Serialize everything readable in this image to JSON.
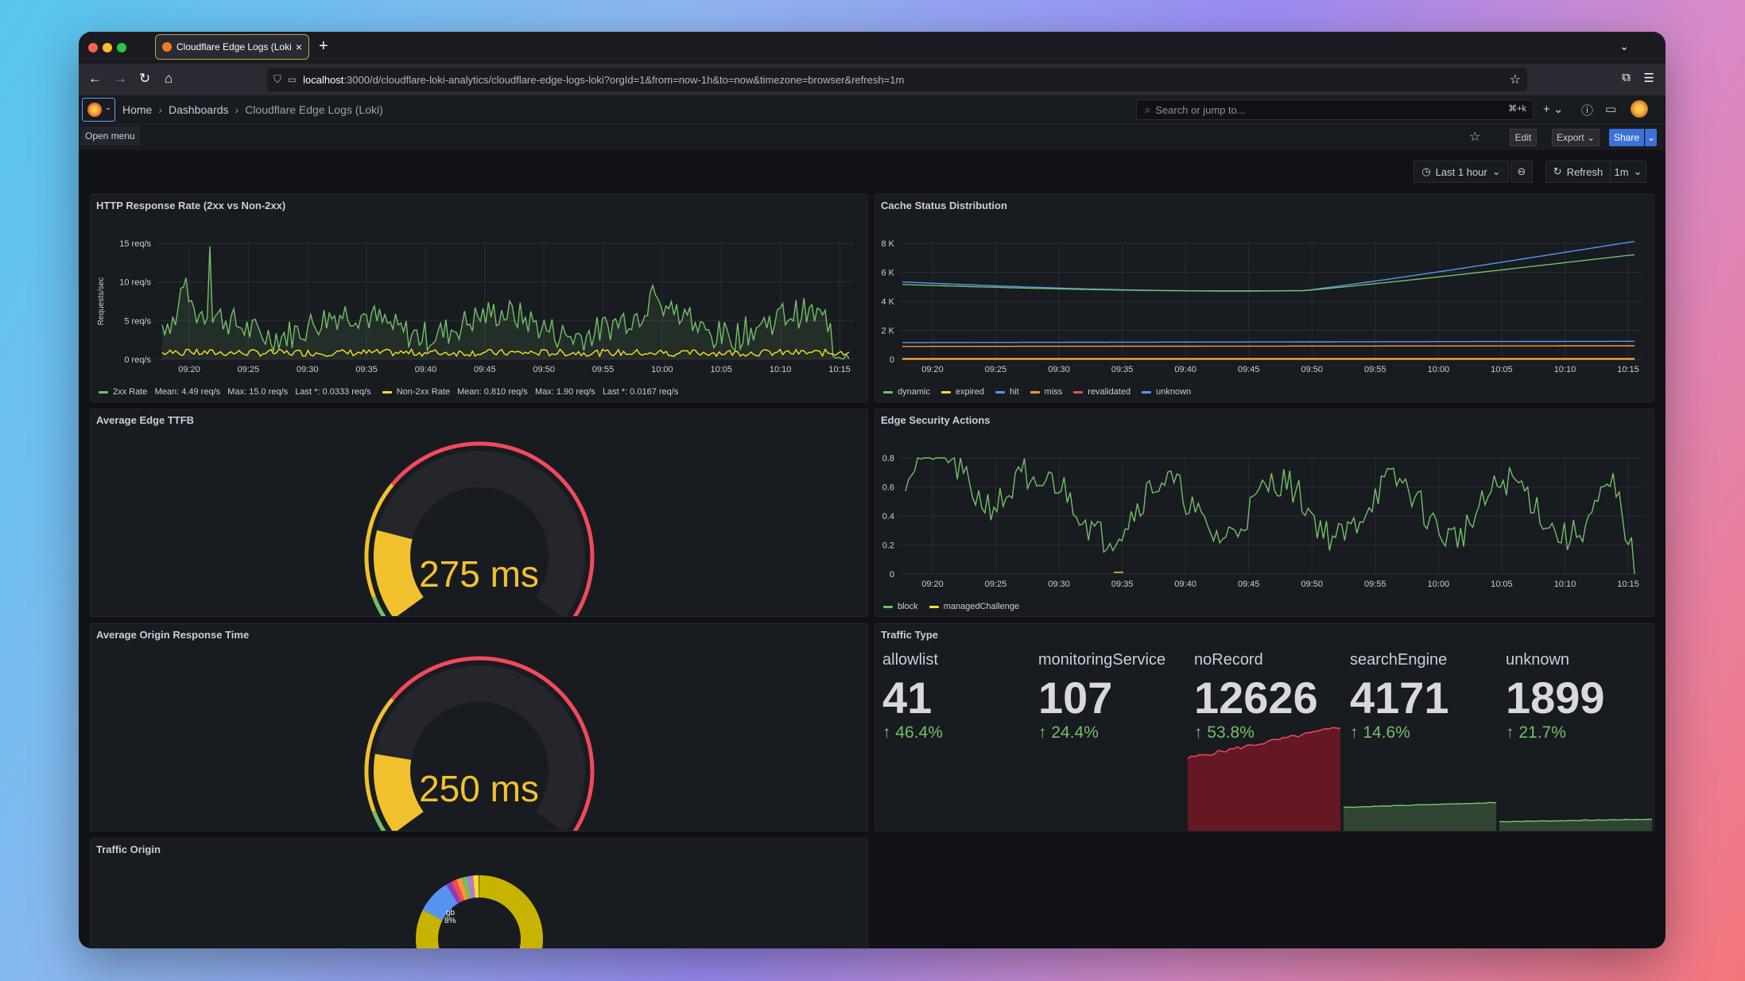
{
  "browser": {
    "tab_title": "Cloudflare Edge Logs (Loki) - D",
    "url_host": "localhost",
    "url_rest": ":3000/d/cloudflare-loki-analytics/cloudflare-edge-logs-loki?orgId=1&from=now-1h&to=now&timezone=browser&refresh=1m"
  },
  "header": {
    "breadcrumbs": [
      "Home",
      "Dashboards",
      "Cloudflare Edge Logs (Loki)"
    ],
    "search_placeholder": "Search or jump to...",
    "search_shortcut": "⌘+k",
    "open_menu_tooltip": "Open menu"
  },
  "toolbar": {
    "edit_label": "Edit",
    "export_label": "Export",
    "share_label": "Share",
    "time_range": "Last 1 hour",
    "refresh_label": "Refresh",
    "refresh_interval": "1m"
  },
  "panels": {
    "http_rate": {
      "title": "HTTP Response Rate (2xx vs Non-2xx)",
      "ylabel": "Requests/sec",
      "yticks": [
        "15 req/s",
        "10 req/s",
        "5 req/s",
        "0 req/s"
      ],
      "xticks": [
        "09:20",
        "09:25",
        "09:30",
        "09:35",
        "09:40",
        "09:45",
        "09:50",
        "09:55",
        "10:00",
        "10:05",
        "10:10",
        "10:15"
      ],
      "legend": [
        {
          "label": "2xx Rate",
          "stats": "Mean: 4.49 req/s   Max: 15.0 req/s   Last *: 0.0333 req/s",
          "color": "#73bf69"
        },
        {
          "label": "Non-2xx Rate",
          "stats": "Mean: 0.810 req/s   Max: 1.90 req/s   Last *: 0.0167 req/s",
          "color": "#fade2a"
        }
      ]
    },
    "cache": {
      "title": "Cache Status Distribution",
      "yticks": [
        "8 K",
        "6 K",
        "4 K",
        "2 K",
        "0"
      ],
      "xticks": [
        "09:20",
        "09:25",
        "09:30",
        "09:35",
        "09:40",
        "09:45",
        "09:50",
        "09:55",
        "10:00",
        "10:05",
        "10:10",
        "10:15"
      ],
      "legend": [
        {
          "label": "dynamic",
          "color": "#73bf69"
        },
        {
          "label": "expired",
          "color": "#fade2a"
        },
        {
          "label": "hit",
          "color": "#5794f2"
        },
        {
          "label": "miss",
          "color": "#ff9830"
        },
        {
          "label": "revalidated",
          "color": "#f2495c"
        },
        {
          "label": "unknown",
          "color": "#5794f2"
        }
      ]
    },
    "ttfb": {
      "title": "Average Edge TTFB",
      "value": "275 ms",
      "fraction": 0.2
    },
    "security": {
      "title": "Edge Security Actions",
      "yticks": [
        "0.8",
        "0.6",
        "0.4",
        "0.2",
        "0"
      ],
      "xticks": [
        "09:20",
        "09:25",
        "09:30",
        "09:35",
        "09:40",
        "09:45",
        "09:50",
        "09:55",
        "10:00",
        "10:05",
        "10:10",
        "10:15"
      ],
      "legend": [
        {
          "label": "block",
          "color": "#73bf69"
        },
        {
          "label": "managedChallenge",
          "color": "#fade2a"
        }
      ]
    },
    "origin": {
      "title": "Average Origin Response Time",
      "value": "250 ms",
      "fraction": 0.18
    },
    "traffic_type": {
      "title": "Traffic Type",
      "stats": [
        {
          "name": "allowlist",
          "value": "41",
          "delta": "↑ 46.4%"
        },
        {
          "name": "monitoringService",
          "value": "107",
          "delta": "↑ 24.4%"
        },
        {
          "name": "noRecord",
          "value": "12626",
          "delta": "↑ 53.8%"
        },
        {
          "name": "searchEngine",
          "value": "4171",
          "delta": "↑ 14.6%"
        },
        {
          "name": "unknown",
          "value": "1899",
          "delta": "↑ 21.7%"
        }
      ]
    },
    "traffic_origin": {
      "title": "Traffic Origin",
      "slice_label": "gb",
      "slice_pct": "8%"
    }
  }
}
